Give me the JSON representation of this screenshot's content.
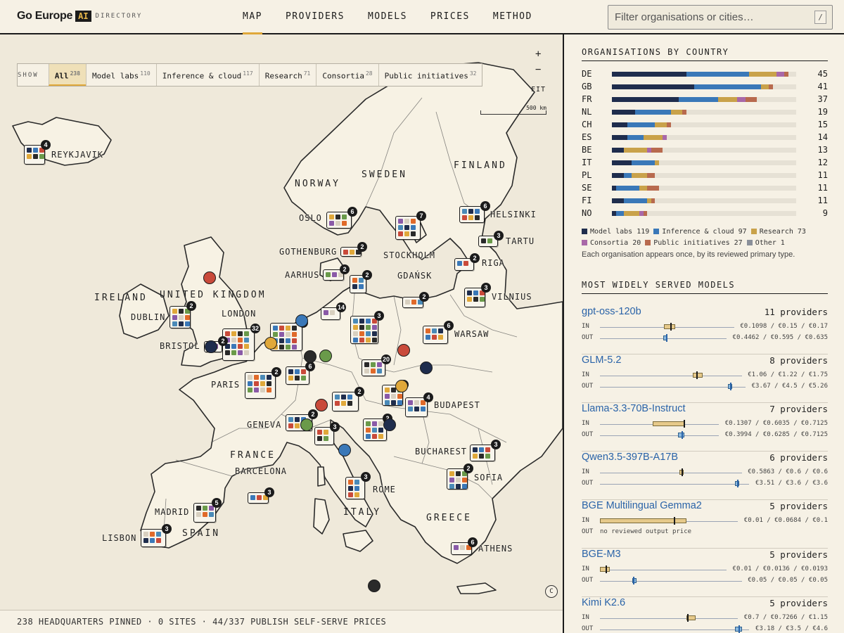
{
  "header": {
    "logo_text": "Go Europe",
    "logo_badge": "AI",
    "logo_sub": "DIRECTORY",
    "nav": [
      "MAP",
      "PROVIDERS",
      "MODELS",
      "PRICES",
      "METHOD"
    ],
    "filter_placeholder": "Filter organisations or cities…",
    "filter_shortcut": "/"
  },
  "map": {
    "show_label": "SHOW",
    "filters": [
      {
        "label": "All",
        "count": "238"
      },
      {
        "label": "Model labs",
        "count": "110"
      },
      {
        "label": "Inference & cloud",
        "count": "117"
      },
      {
        "label": "Research",
        "count": "71"
      },
      {
        "label": "Consortia",
        "count": "28"
      },
      {
        "label": "Public initiatives",
        "count": "32"
      }
    ],
    "zoom_in": "+",
    "zoom_out": "−",
    "fit": "FIT",
    "scale": "500 km",
    "attribution": "C",
    "countries": [
      "IRELAND",
      "UNITED KINGDOM",
      "NORWAY",
      "SWEDEN",
      "FINLAND",
      "FRANCE",
      "SPAIN",
      "ITALY",
      "GREECE"
    ],
    "cities": [
      "REYKJAVIK",
      "OSLO",
      "HELSINKI",
      "TARTU",
      "GOTHENBURG",
      "STOCKHOLM",
      "RIGA",
      "AARHUS",
      "GDAŃSK",
      "VILNIUS",
      "DUBLIN",
      "LONDON",
      "BRISTOL",
      "WARSAW",
      "PARIS",
      "GENEVA",
      "BUDAPEST",
      "BUCHAREST",
      "SOFIA",
      "BARCELONA",
      "ROME",
      "MADRID",
      "LISBON",
      "ATHENS"
    ],
    "counts": [
      "4",
      "6",
      "7",
      "6",
      "2",
      "2",
      "2",
      "2",
      "3",
      "2",
      "3",
      "2",
      "14",
      "3",
      "32",
      "2",
      "6",
      "5",
      "20",
      "2",
      "6",
      "3",
      "4",
      "2",
      "3",
      "2",
      "3",
      "3",
      "5",
      "3",
      "3",
      "2",
      "6",
      "2"
    ]
  },
  "status": "238 HEADQUARTERS PINNED · 0 SITES · 44/337 PUBLISH SELF-SERVE PRICES",
  "countries_section": {
    "title": "ORGANISATIONS BY COUNTRY",
    "colors": {
      "labs": "#1f2d4d",
      "inference": "#3a78b8",
      "research": "#c9a24a",
      "consortia": "#a968a8",
      "public": "#b86a4e",
      "other": "#8a8f99"
    },
    "rows": [
      {
        "code": "DE",
        "total": "45",
        "labs": 19,
        "inference": 16,
        "research": 7,
        "consortia": 2,
        "public": 1,
        "other": 0
      },
      {
        "code": "GB",
        "total": "41",
        "labs": 21,
        "inference": 17,
        "research": 2,
        "consortia": 0,
        "public": 1,
        "other": 0
      },
      {
        "code": "FR",
        "total": "37",
        "labs": 17,
        "inference": 10,
        "research": 5,
        "consortia": 2,
        "public": 3,
        "other": 0
      },
      {
        "code": "NL",
        "total": "19",
        "labs": 6,
        "inference": 9,
        "research": 3,
        "consortia": 0,
        "public": 1,
        "other": 0
      },
      {
        "code": "CH",
        "total": "15",
        "labs": 4,
        "inference": 7,
        "research": 3,
        "consortia": 0,
        "public": 1,
        "other": 0
      },
      {
        "code": "ES",
        "total": "14",
        "labs": 4,
        "inference": 4,
        "research": 5,
        "consortia": 1,
        "public": 0,
        "other": 0
      },
      {
        "code": "BE",
        "total": "13",
        "labs": 3,
        "inference": 0,
        "research": 6,
        "consortia": 1,
        "public": 3,
        "other": 0
      },
      {
        "code": "IT",
        "total": "12",
        "labs": 5,
        "inference": 6,
        "research": 1,
        "consortia": 0,
        "public": 0,
        "other": 0
      },
      {
        "code": "PL",
        "total": "11",
        "labs": 3,
        "inference": 2,
        "research": 4,
        "consortia": 0,
        "public": 2,
        "other": 0
      },
      {
        "code": "SE",
        "total": "11",
        "labs": 1,
        "inference": 6,
        "research": 2,
        "consortia": 0,
        "public": 3,
        "other": 0
      },
      {
        "code": "FI",
        "total": "11",
        "labs": 3,
        "inference": 6,
        "research": 1,
        "consortia": 0,
        "public": 1,
        "other": 0
      },
      {
        "code": "NO",
        "total": "9",
        "labs": 1,
        "inference": 2,
        "research": 4,
        "consortia": 1,
        "public": 1,
        "other": 0
      }
    ],
    "legend": [
      {
        "label": "Model labs",
        "count": "119",
        "color": "#1f2d4d"
      },
      {
        "label": "Inference & cloud",
        "count": "97",
        "color": "#3a78b8"
      },
      {
        "label": "Research",
        "count": "73",
        "color": "#c9a24a"
      },
      {
        "label": "Consortia",
        "count": "20",
        "color": "#a968a8"
      },
      {
        "label": "Public initiatives",
        "count": "27",
        "color": "#b86a4e"
      },
      {
        "label": "Other",
        "count": "1",
        "color": "#8a8f99"
      }
    ],
    "note": "Each organisation appears once, by its reviewed primary type."
  },
  "models_section": {
    "title": "MOST WIDELY SERVED MODELS",
    "in_label": "IN",
    "out_label": "OUT",
    "no_output_text": "no reviewed output price",
    "models": [
      {
        "name": "gpt-oss-120b",
        "providers": "11 providers",
        "in_text": "€0.1098 / €0.15 / €0.17",
        "in_lo": 0.55,
        "in_med": 0.6,
        "in_hi": 0.65,
        "in_min": 0,
        "in_max": 1.1,
        "out_text": "€0.4462 / €0.595 / €0.635",
        "out_lo": 0.58,
        "out_med": 0.6,
        "out_hi": 0.62,
        "out_min": 0,
        "out_max": 1.1
      },
      {
        "name": "GLM-5.2",
        "providers": "8 providers",
        "in_text": "€1.06 / €1.22 / €1.75",
        "in_lo": 0.76,
        "in_med": 0.78,
        "in_hi": 0.84,
        "in_min": 0,
        "in_max": 1.1,
        "out_text": "€3.67 / €4.5 / €5.26",
        "out_lo": 1.02,
        "out_med": 1.03,
        "out_hi": 1.05,
        "out_min": 0,
        "out_max": 1.1
      },
      {
        "name": "Llama-3.3-70B-Instruct",
        "providers": "7 providers",
        "in_text": "€0.1307 / €0.6035 / €0.7125",
        "in_lo": 0.35,
        "in_med": 0.55,
        "in_hi": 0.56,
        "in_min": 0,
        "in_max": 0.75,
        "out_text": "€0.3994 / €0.6285 / €0.7125",
        "out_lo": 0.52,
        "out_med": 0.54,
        "out_hi": 0.56,
        "out_min": 0,
        "out_max": 0.75
      },
      {
        "name": "Qwen3.5-397B-A17B",
        "providers": "6 providers",
        "in_text": "€0.5863 / €0.6 / €0.6",
        "in_lo": 0.59,
        "in_med": 0.6,
        "in_hi": 0.6,
        "in_min": 0,
        "in_max": 1.0,
        "out_text": "€3.51 / €3.6 / €3.6",
        "out_lo": 0.95,
        "out_med": 0.96,
        "out_hi": 0.96,
        "out_min": 0,
        "out_max": 1.0
      },
      {
        "name": "BGE Multilingual Gemma2",
        "providers": "5 providers",
        "in_text": "€0.01 / €0.0684 / €0.1",
        "in_lo": 0.0,
        "in_med": 0.28,
        "in_hi": 0.33,
        "in_min": 0,
        "in_max": 0.5,
        "out_text": "",
        "out_lo": null,
        "out_med": null,
        "out_hi": null,
        "out_min": 0,
        "out_max": 1
      },
      {
        "name": "BGE-M3",
        "providers": "5 providers",
        "in_text": "€0.01 / €0.0136 / €0.0193",
        "in_lo": 0.0,
        "in_med": 0.04,
        "in_hi": 0.08,
        "in_min": 0,
        "in_max": 1.0,
        "out_text": "€0.05 / €0.05 / €0.05",
        "out_lo": 0.24,
        "out_med": 0.24,
        "out_hi": 0.24,
        "out_min": 0,
        "out_max": 1.0
      },
      {
        "name": "Kimi K2.6",
        "providers": "5 providers",
        "in_text": "€0.7 / €0.7266 / €1.15",
        "in_lo": 0.66,
        "in_med": 0.66,
        "in_hi": 0.73,
        "in_min": 0,
        "in_max": 1.0,
        "out_text": "€3.18 / €3.5 / €4.6",
        "out_lo": 0.95,
        "out_med": 0.97,
        "out_hi": 1.0,
        "out_min": 0,
        "out_max": 1.0
      }
    ]
  }
}
